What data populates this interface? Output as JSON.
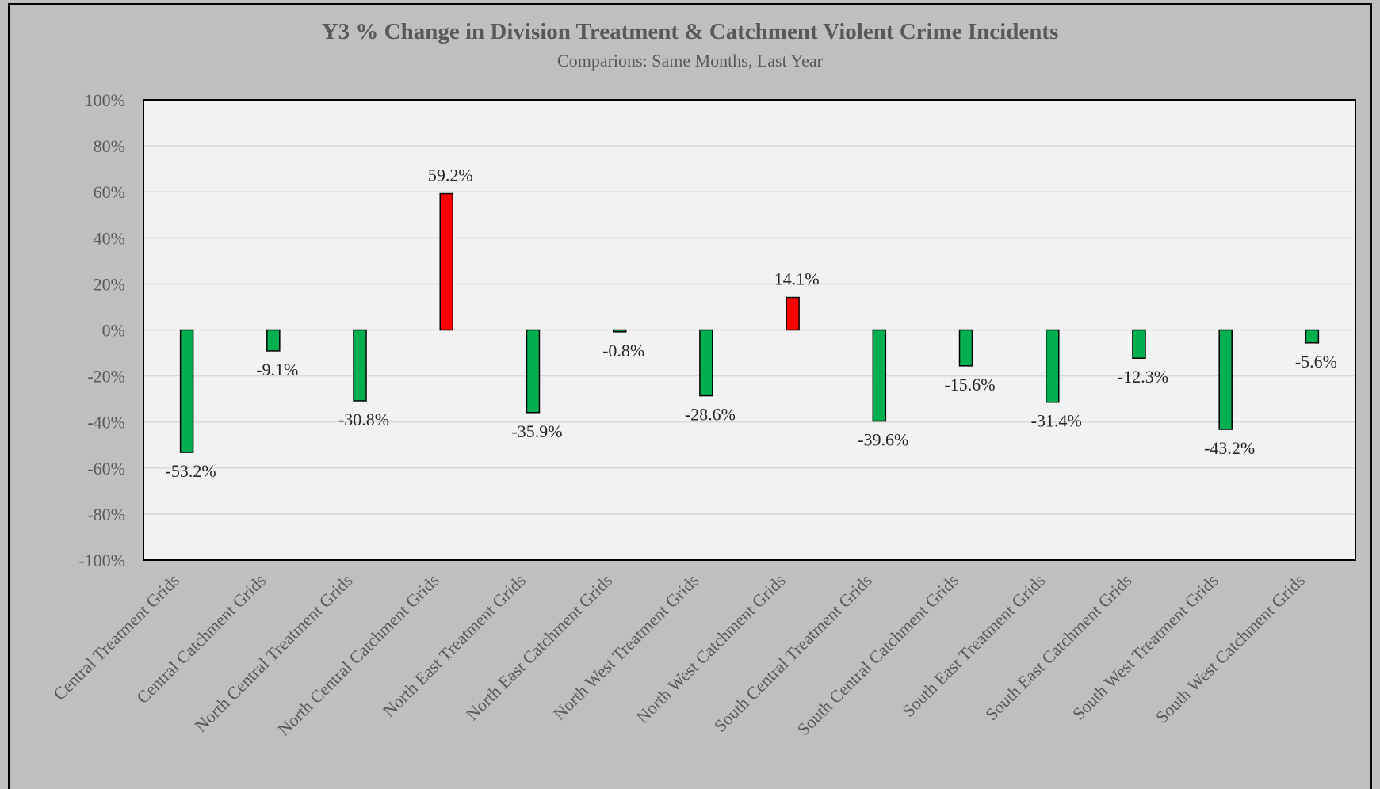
{
  "chart_data": {
    "type": "bar",
    "title": "Y3 % Change in Division Treatment & Catchment Violent Crime Incidents",
    "subtitle": "Comparions: Same Months, Last Year",
    "xlabel": "",
    "ylabel": "",
    "ylim": [
      -100,
      100
    ],
    "yticks": [
      "100%",
      "80%",
      "60%",
      "40%",
      "20%",
      "0%",
      "-20%",
      "-40%",
      "-60%",
      "-80%",
      "-100%"
    ],
    "ytick_values": [
      100,
      80,
      60,
      40,
      20,
      0,
      -20,
      -40,
      -60,
      -80,
      -100
    ],
    "grid": true,
    "legend": "none",
    "colors": {
      "decrease": "#00b050",
      "increase": "#ff0000",
      "plot_bg": "#f2f2f2",
      "grid": "#d9d9d9",
      "outer_bg": "#bfbfbf"
    },
    "categories": [
      "Central Treatment Grids",
      "Central Catchment Grids",
      "North Central Treatment Grids",
      "North Central Catchment Grids",
      "North East Treatment Grids",
      "North East Catchment Grids",
      "North West Treatment Grids",
      "North West Catchment Grids",
      "South Central Treatment Grids",
      "South Central Catchment Grids",
      "South East Treatment Grids",
      "South East Catchment Grids",
      "South West Treatment Grids",
      "South West Catchment Grids"
    ],
    "values": [
      -53.2,
      -9.1,
      -30.8,
      59.2,
      -35.9,
      -0.8,
      -28.6,
      14.1,
      -39.6,
      -15.6,
      -31.4,
      -12.3,
      -43.2,
      -5.6
    ],
    "data_labels": [
      "-53.2%",
      "-9.1%",
      "-30.8%",
      "59.2%",
      "-35.9%",
      "-0.8%",
      "-28.6%",
      "14.1%",
      "-39.6%",
      "-15.6%",
      "-31.4%",
      "-12.3%",
      "-43.2%",
      "-5.6%"
    ]
  }
}
